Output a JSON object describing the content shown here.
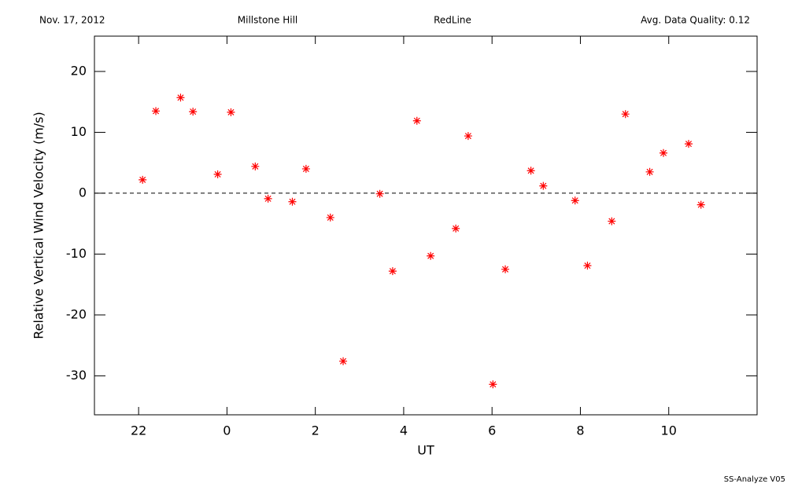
{
  "chart_data": {
    "type": "scatter",
    "header": [
      "Nov. 17, 2012",
      "Millstone Hill",
      "RedLine",
      "Avg. Data Quality: 0.12"
    ],
    "footer": "SS-Analyze V05",
    "xlabel": "UT",
    "ylabel": "Relative Vertical Wind Velocity (m/s)",
    "xlim": [
      21,
      36
    ],
    "ylim": [
      -36.4,
      25.8
    ],
    "xticks": [
      22,
      {
        "value": 24,
        "label": "0"
      },
      {
        "value": 26,
        "label": "2"
      },
      {
        "value": 28,
        "label": "4"
      },
      {
        "value": 30,
        "label": "6"
      },
      {
        "value": 32,
        "label": "8"
      },
      {
        "value": 34,
        "label": "10"
      }
    ],
    "yticks": [
      -30,
      -20,
      -10,
      0,
      10,
      20
    ],
    "hline": 0,
    "series": [
      {
        "color": "#ff0000",
        "x": [
          22.09,
          22.39,
          22.95,
          23.23,
          23.79,
          24.09,
          24.64,
          24.93,
          25.48,
          25.79,
          26.34,
          26.63,
          27.46,
          27.75,
          28.3,
          28.61,
          29.18,
          29.46,
          30.02,
          30.3,
          30.88,
          31.16,
          31.88,
          32.16,
          32.71,
          33.02,
          33.57,
          33.88,
          34.45,
          34.73
        ],
        "values": [
          2.2,
          13.5,
          15.7,
          13.4,
          3.1,
          13.3,
          4.4,
          -0.9,
          -1.4,
          4.0,
          -4.0,
          -27.6,
          -0.1,
          -12.8,
          11.9,
          -10.3,
          -5.8,
          9.4,
          -31.4,
          -12.5,
          3.7,
          1.2,
          -1.2,
          -11.9,
          -4.6,
          13.0,
          3.5,
          6.6,
          8.1,
          -1.9
        ]
      }
    ]
  }
}
